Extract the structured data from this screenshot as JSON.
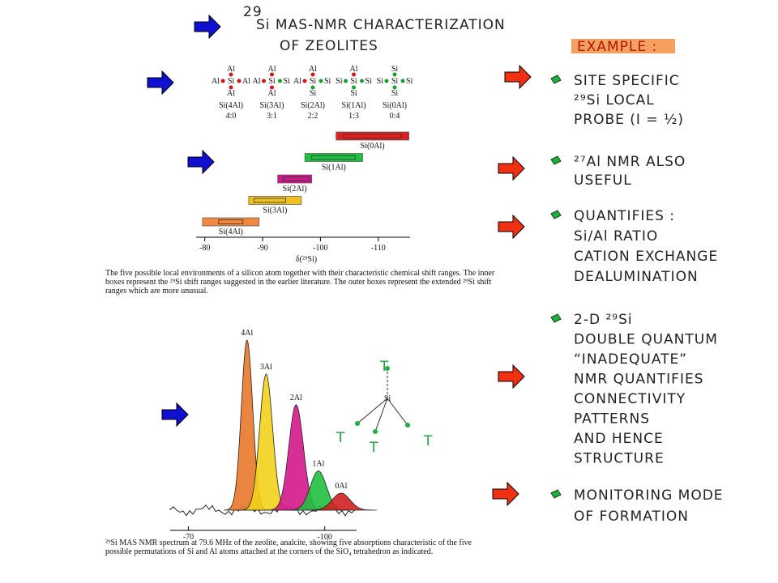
{
  "title": {
    "sup": "29",
    "line1": "Si MAS-NMR CHARACTERIZATION",
    "line2": "OF ZEOLITES"
  },
  "environments": [
    {
      "center": "Si",
      "top": "Al",
      "left": "Al",
      "right": "Al",
      "bottom": "Al",
      "name": "Si(4Al)",
      "ratio": "4:0"
    },
    {
      "center": "Si",
      "top": "Al",
      "left": "Al",
      "right": "Si",
      "bottom": "Al",
      "name": "Si(3Al)",
      "ratio": "3:1"
    },
    {
      "center": "Si",
      "top": "Al",
      "left": "Al",
      "right": "Si",
      "bottom": "Si",
      "name": "Si(2Al)",
      "ratio": "2:2"
    },
    {
      "center": "Si",
      "top": "Al",
      "left": "Si",
      "right": "Si",
      "bottom": "Si",
      "name": "Si(1Al)",
      "ratio": "1:3"
    },
    {
      "center": "Si",
      "top": "Si",
      "left": "Si",
      "right": "Si",
      "bottom": "Si",
      "name": "Si(0Al)",
      "ratio": "0:4"
    }
  ],
  "shift_chart": {
    "type": "range-bar",
    "xlabel": "δ(²⁹Si)",
    "xlim": [
      -78.5,
      -115.5
    ],
    "xticks": [
      -80,
      -90,
      -100,
      -110
    ],
    "series": [
      {
        "name": "Si(0Al)",
        "color": "#e02020",
        "outer": [
          -102.7,
          -115.3
        ],
        "inner": [
          -104,
          -114
        ]
      },
      {
        "name": "Si(1Al)",
        "color": "#20c040",
        "outer": [
          -97.3,
          -107.3
        ],
        "inner": [
          -98.5,
          -106
        ]
      },
      {
        "name": "Si(2Al)",
        "color": "#d0188c",
        "outer": [
          -92.6,
          -98.5
        ],
        "inner": [
          -93.5,
          -98
        ]
      },
      {
        "name": "Si(3Al)",
        "color": "#f0c020",
        "outer": [
          -87.6,
          -96.7
        ],
        "inner": [
          -88.5,
          -94
        ]
      },
      {
        "name": "Si(4Al)",
        "color": "#f08840",
        "outer": [
          -79.6,
          -89.4
        ],
        "inner": [
          -82.4,
          -86.6
        ]
      }
    ]
  },
  "caption1": "The five possible local environments of a silicon atom together with their characteristic chemical shift ranges. The inner boxes represent the ²⁹Si shift ranges suggested in the earlier literature. The outer boxes represent the extended ²⁹Si shift ranges which are more unusual.",
  "spectrum": {
    "type": "spectrum",
    "xlim": [
      -66,
      -107
    ],
    "xticks": [
      -70,
      -100
    ],
    "peaks": [
      {
        "label": "4Al",
        "color": "#e8782a",
        "position": -82.9,
        "intensity": 100
      },
      {
        "label": "3Al",
        "color": "#f2d21a",
        "position": -87.1,
        "intensity": 80
      },
      {
        "label": "2Al",
        "color": "#d4188c",
        "position": -93.7,
        "intensity": 62
      },
      {
        "label": "1Al",
        "color": "#22c040",
        "position": -98.6,
        "intensity": 23
      },
      {
        "label": "0Al",
        "color": "#d02020",
        "position": -103.6,
        "intensity": 10
      }
    ]
  },
  "tetrahedron": {
    "center": "Si",
    "corners": [
      "T",
      "T",
      "T",
      "T"
    ]
  },
  "caption2": "²⁹Si MAS NMR spectrum at 79.6 MHz of the zeolite, analcite, showing five absorptions characteristic of the five possible permutations of Si and Al atoms attached at the corners of the SiO₄ tetrahedron as indicated.",
  "notes": {
    "header": "EXAMPLE :",
    "items": [
      [
        "SITE SPECIFIC",
        "²⁹Si LOCAL",
        "PROBE (I = ½)"
      ],
      [
        "²⁷Al NMR ALSO",
        "USEFUL"
      ],
      [
        "QUANTIFIES :",
        "Si/Al RATIO",
        "CATION EXCHANGE",
        "DEALUMINATION"
      ],
      [
        "2-D ²⁹Si",
        "DOUBLE QUANTUM",
        "“INADEQUATE”",
        "NMR QUANTIFIES",
        "CONNECTIVITY",
        "PATTERNS",
        "AND HENCE",
        "STRUCTURE"
      ],
      [
        "MONITORING MODE",
        "OF FORMATION"
      ]
    ]
  }
}
